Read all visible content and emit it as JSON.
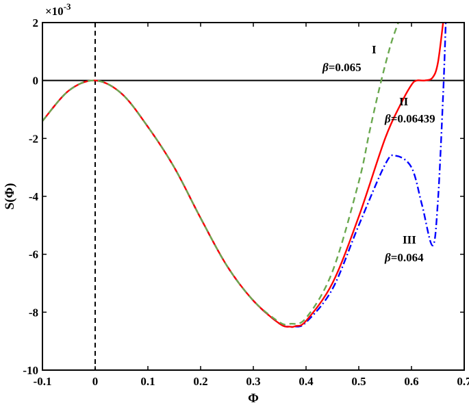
{
  "chart_data": {
    "type": "line",
    "xlabel": "Φ",
    "ylabel": "S(Φ)",
    "y_multiplier": "×10",
    "y_multiplier_exp": "-3",
    "xlim": [
      -0.1,
      0.7
    ],
    "ylim": [
      -10,
      2
    ],
    "x_ticks": [
      -0.1,
      0,
      0.1,
      0.2,
      0.3,
      0.4,
      0.5,
      0.6,
      0.7
    ],
    "x_tick_labels": [
      "-0.1",
      "0",
      "0.1",
      "0.2",
      "0.3",
      "0.4",
      "0.5",
      "0.6",
      "0.7"
    ],
    "y_ticks": [
      -10,
      -8,
      -6,
      -4,
      -2,
      0,
      2
    ],
    "y_tick_labels": [
      "-10",
      "-8",
      "-6",
      "-4",
      "-2",
      "0",
      "2"
    ],
    "reference_lines": {
      "horizontal_y": 0,
      "vertical_x": 0
    },
    "series": [
      {
        "id": "III",
        "color": "#0000ff",
        "dash": "dashdot",
        "x": [
          -0.1,
          -0.05,
          0,
          0.05,
          0.1,
          0.15,
          0.2,
          0.25,
          0.3,
          0.35,
          0.37,
          0.38,
          0.4,
          0.45,
          0.5,
          0.55,
          0.57,
          0.6,
          0.62,
          0.64,
          0.65,
          0.66,
          0.665
        ],
        "y": [
          -1.4,
          -0.35,
          0,
          -0.45,
          -1.6,
          -3.0,
          -4.75,
          -6.4,
          -7.6,
          -8.4,
          -8.5,
          -8.5,
          -8.35,
          -7.2,
          -5.0,
          -2.9,
          -2.6,
          -3.0,
          -4.3,
          -5.7,
          -4.2,
          -0.5,
          2.0
        ]
      },
      {
        "id": "II",
        "color": "#ff0000",
        "dash": "solid",
        "x": [
          -0.1,
          -0.05,
          0,
          0.05,
          0.1,
          0.15,
          0.2,
          0.25,
          0.3,
          0.35,
          0.37,
          0.38,
          0.4,
          0.45,
          0.5,
          0.55,
          0.58,
          0.6,
          0.61,
          0.625,
          0.64,
          0.65,
          0.66
        ],
        "y": [
          -1.4,
          -0.35,
          0,
          -0.45,
          -1.6,
          -3.0,
          -4.75,
          -6.4,
          -7.6,
          -8.4,
          -8.5,
          -8.48,
          -8.3,
          -7.0,
          -4.7,
          -2.0,
          -0.8,
          -0.15,
          0.0,
          0.0,
          0.1,
          0.6,
          2.0
        ]
      },
      {
        "id": "I",
        "color": "#6aa84f",
        "dash": "dashed",
        "x": [
          -0.1,
          -0.05,
          0,
          0.05,
          0.1,
          0.15,
          0.2,
          0.25,
          0.3,
          0.35,
          0.37,
          0.4,
          0.45,
          0.5,
          0.52,
          0.54,
          0.56,
          0.575
        ],
        "y": [
          -1.4,
          -0.35,
          0,
          -0.45,
          -1.6,
          -3.0,
          -4.75,
          -6.4,
          -7.6,
          -8.35,
          -8.4,
          -8.2,
          -6.6,
          -3.5,
          -1.8,
          -0.2,
          1.2,
          2.0
        ]
      }
    ],
    "annotations": [
      {
        "id": "I",
        "label": "I",
        "beta_symbol": "β",
        "beta_text": "=0.065"
      },
      {
        "id": "II",
        "label": "II",
        "beta_symbol": "β",
        "beta_text": "=0.06439"
      },
      {
        "id": "III",
        "label": "III",
        "beta_symbol": "β",
        "beta_text": "=0.064"
      }
    ]
  }
}
